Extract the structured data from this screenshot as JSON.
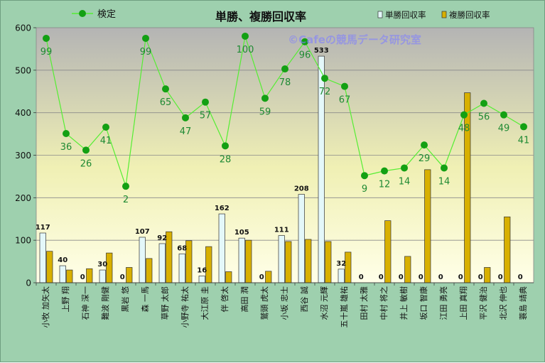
{
  "chart_data": {
    "type": "bar",
    "title": "単勝、複勝回収率",
    "watermark": "©Cafeの競馬データ研究室",
    "legend_position": "top",
    "ylim": [
      0,
      600
    ],
    "yticks": [
      0,
      100,
      200,
      300,
      400,
      500,
      600
    ],
    "grid": true,
    "colors": {
      "background": "#9ed0ae",
      "plot_top": "#b4b4b4",
      "plot_bottom": "#ffffe8",
      "win_bar": "#e4f8fa",
      "place_bar": "#d8b000",
      "line": "#55ee33",
      "marker": "#13a013",
      "point_label": "#1f8a33"
    },
    "categories": [
      "小牧 加矢太",
      "上野 翔",
      "石神 深一",
      "難波 剛健",
      "黒岩 悠",
      "森 一馬",
      "草野 太郎",
      "小野寺 祐太",
      "大江原 圭",
      "伴 啓太",
      "高田 潤",
      "鷲頭 虎太",
      "小坂 忠士",
      "西谷 誠",
      "水沼 元輝",
      "五十嵐 雄祐",
      "田村 太雅",
      "中村 将之",
      "井上 敏樹",
      "坂口 智康",
      "江田 勇亮",
      "上田 真翔",
      "平沢 健治",
      "北沢 伸也",
      "蓑島 靖典"
    ],
    "series": [
      {
        "name": "単勝回収率",
        "kind": "bar",
        "values": [
          117,
          40,
          0,
          30,
          0,
          107,
          92,
          68,
          16,
          162,
          105,
          0,
          111,
          208,
          533,
          32,
          0,
          0,
          0,
          0,
          0,
          0,
          0,
          0,
          0
        ]
      },
      {
        "name": "複勝回収率",
        "kind": "bar",
        "values": [
          74,
          30,
          33,
          70,
          36,
          57,
          120,
          99,
          85,
          26,
          100,
          27,
          97,
          102,
          97,
          72,
          0,
          146,
          62,
          266,
          0,
          447,
          36,
          155,
          0
        ]
      },
      {
        "name": "検定",
        "kind": "line",
        "values": [
          575,
          351,
          312,
          366,
          227,
          575,
          456,
          388,
          425,
          322,
          580,
          434,
          503,
          567,
          481,
          462,
          252,
          263,
          270,
          324,
          270,
          395,
          422,
          395,
          367
        ],
        "labels": [
          99,
          36,
          26,
          41,
          2,
          99,
          65,
          47,
          57,
          28,
          100,
          59,
          78,
          96,
          72,
          67,
          9,
          12,
          14,
          29,
          14,
          48,
          56,
          49,
          41
        ]
      }
    ]
  }
}
